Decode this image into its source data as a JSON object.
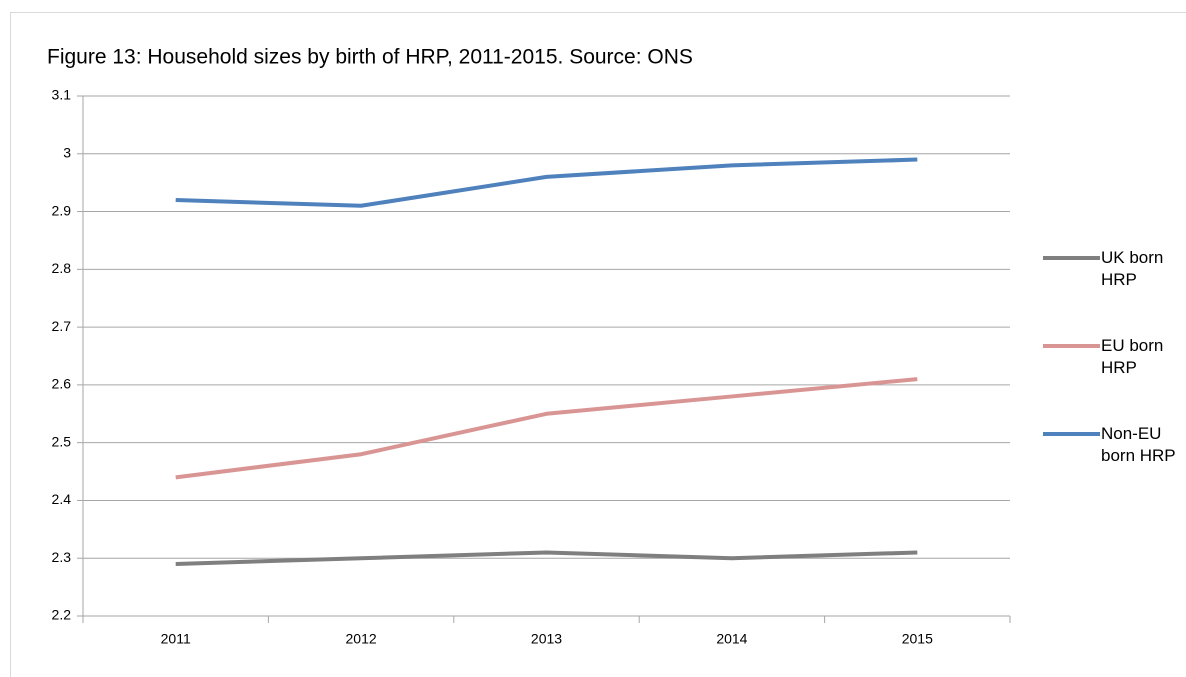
{
  "chart_data": {
    "type": "line",
    "title": "Figure 13: Household sizes by birth of HRP, 2011-2015. Source: ONS",
    "categories": [
      "2011",
      "2012",
      "2013",
      "2014",
      "2015"
    ],
    "series": [
      {
        "name": "UK born HRP",
        "color": "#7f7f7f",
        "values": [
          2.29,
          2.3,
          2.31,
          2.3,
          2.31
        ]
      },
      {
        "name": "EU born HRP",
        "color": "#d99594",
        "values": [
          2.44,
          2.48,
          2.55,
          2.58,
          2.61
        ]
      },
      {
        "name": "Non-EU born HRP",
        "color": "#4f81bd",
        "values": [
          2.92,
          2.91,
          2.96,
          2.98,
          2.99
        ]
      }
    ],
    "ylim": [
      2.2,
      3.1
    ],
    "yticks": [
      2.2,
      2.3,
      2.4,
      2.5,
      2.6,
      2.7,
      2.8,
      2.9,
      3,
      3.1
    ],
    "grid": true,
    "legend": "right"
  }
}
